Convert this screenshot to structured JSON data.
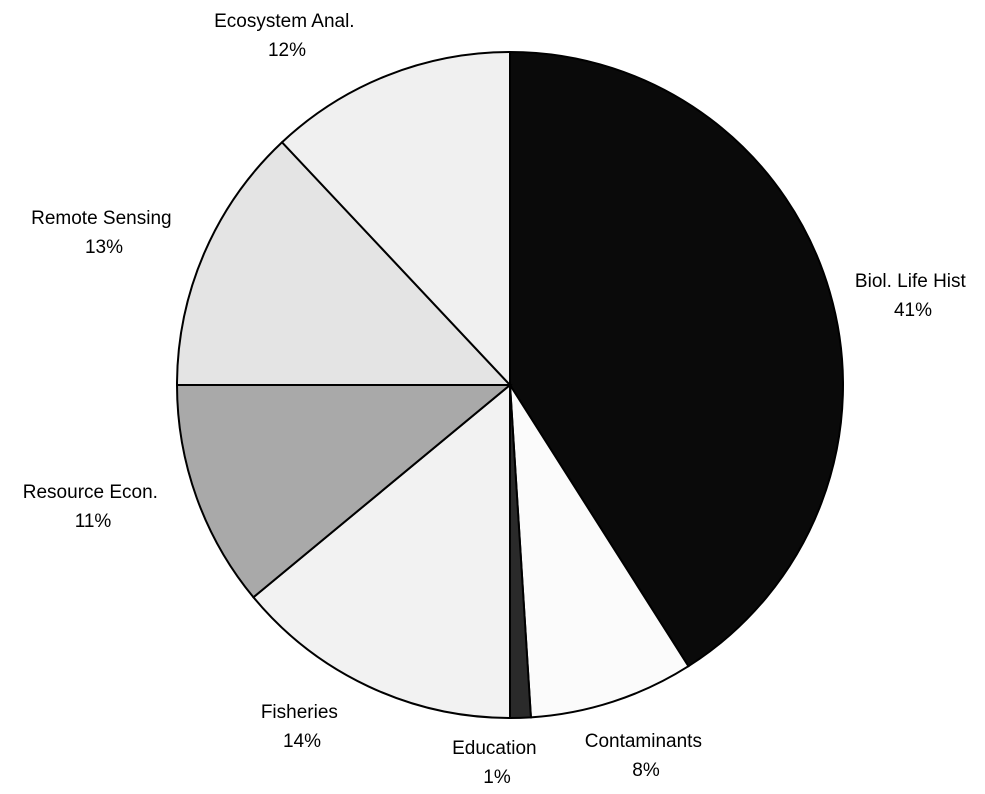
{
  "chart_data": {
    "type": "pie",
    "title": "",
    "start_angle": "12 o'clock",
    "direction": "clockwise",
    "legend": "none",
    "slices": [
      {
        "label": "Biol. Life Hist",
        "value": 41,
        "percent_label": "41%",
        "color": "#0a0a0a"
      },
      {
        "label": "Contaminants",
        "value": 8,
        "percent_label": "8%",
        "color": "#fbfbfb"
      },
      {
        "label": "Education",
        "value": 1,
        "percent_label": "1%",
        "color": "#2a2a2a"
      },
      {
        "label": "Fisheries",
        "value": 14,
        "percent_label": "14%",
        "color": "#f2f2f2"
      },
      {
        "label": "Resource Econ.",
        "value": 11,
        "percent_label": "11%",
        "color": "#a9a9a9"
      },
      {
        "label": "Remote Sensing",
        "value": 13,
        "percent_label": "13%",
        "color": "#e4e4e4"
      },
      {
        "label": "Ecosystem Anal.",
        "value": 12,
        "percent_label": "12%",
        "color": "#f0f0f0"
      }
    ]
  }
}
